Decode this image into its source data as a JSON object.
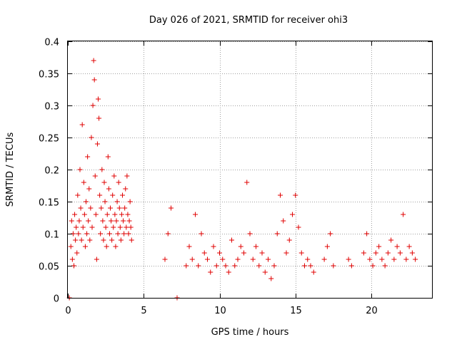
{
  "chart_data": {
    "type": "scatter",
    "title": "Day 026 of 2021, SRMTID for receiver ohi3",
    "xlabel": "GPS time / hours",
    "ylabel": "SRMTID / TECUs",
    "xlim": [
      0,
      24
    ],
    "ylim": [
      0,
      0.4
    ],
    "xticks": [
      0,
      5,
      10,
      15,
      20
    ],
    "xtick_labels": [
      "0",
      "5",
      "10",
      "15",
      "20"
    ],
    "yticks": [
      0,
      0.05,
      0.1,
      0.15,
      0.2,
      0.25,
      0.3,
      0.35,
      0.4
    ],
    "ytick_labels": [
      "0",
      "0.05",
      "0.1",
      "0.15",
      "0.2",
      "0.25",
      "0.3",
      "0.35",
      "0.4"
    ],
    "grid": true,
    "marker": "plus",
    "series": [
      {
        "name": "SRMTID",
        "color": "#e00000",
        "x": [
          0.1,
          0.2,
          0.25,
          0.3,
          0.35,
          0.4,
          0.45,
          0.5,
          0.55,
          0.6,
          0.65,
          0.7,
          0.75,
          0.8,
          0.85,
          0.9,
          0.95,
          1.0,
          1.05,
          1.1,
          1.15,
          1.2,
          1.25,
          1.3,
          1.35,
          1.4,
          1.45,
          1.5,
          1.55,
          1.6,
          1.65,
          1.7,
          1.75,
          1.8,
          1.85,
          1.9,
          1.95,
          2.0,
          2.05,
          2.1,
          2.15,
          2.2,
          2.25,
          2.3,
          2.35,
          2.4,
          2.45,
          2.5,
          2.55,
          2.6,
          2.65,
          2.7,
          2.75,
          2.8,
          2.85,
          2.9,
          2.95,
          3.0,
          3.05,
          3.1,
          3.15,
          3.2,
          3.25,
          3.3,
          3.35,
          3.4,
          3.45,
          3.5,
          3.55,
          3.6,
          3.65,
          3.7,
          3.75,
          3.8,
          3.85,
          3.9,
          3.95,
          4.0,
          4.05,
          4.1,
          4.15,
          4.2,
          6.4,
          6.6,
          6.8,
          7.2,
          7.8,
          8.0,
          8.2,
          8.4,
          8.6,
          8.8,
          9.0,
          9.2,
          9.4,
          9.6,
          9.8,
          10.0,
          10.2,
          10.4,
          10.6,
          10.8,
          11.0,
          11.2,
          11.4,
          11.6,
          11.8,
          12.0,
          12.2,
          12.4,
          12.6,
          12.8,
          13.0,
          13.2,
          13.4,
          13.6,
          13.8,
          14.0,
          14.2,
          14.4,
          14.6,
          14.8,
          15.0,
          15.2,
          15.4,
          15.6,
          15.8,
          16.0,
          16.2,
          16.9,
          17.1,
          17.3,
          17.5,
          18.5,
          18.7,
          19.5,
          19.7,
          19.9,
          20.1,
          20.3,
          20.5,
          20.7,
          20.9,
          21.1,
          21.3,
          21.5,
          21.7,
          21.9,
          22.1,
          22.3,
          22.5,
          22.7,
          22.9
        ],
        "y": [
          0.0,
          0.08,
          0.12,
          0.06,
          0.1,
          0.05,
          0.13,
          0.09,
          0.11,
          0.07,
          0.16,
          0.1,
          0.12,
          0.2,
          0.14,
          0.09,
          0.27,
          0.11,
          0.18,
          0.13,
          0.08,
          0.15,
          0.1,
          0.22,
          0.12,
          0.17,
          0.09,
          0.14,
          0.25,
          0.11,
          0.3,
          0.37,
          0.34,
          0.19,
          0.13,
          0.06,
          0.24,
          0.31,
          0.28,
          0.16,
          0.1,
          0.14,
          0.2,
          0.12,
          0.09,
          0.18,
          0.15,
          0.11,
          0.08,
          0.13,
          0.22,
          0.17,
          0.1,
          0.14,
          0.12,
          0.09,
          0.16,
          0.11,
          0.19,
          0.13,
          0.08,
          0.12,
          0.15,
          0.1,
          0.18,
          0.14,
          0.11,
          0.09,
          0.13,
          0.16,
          0.12,
          0.1,
          0.14,
          0.17,
          0.11,
          0.19,
          0.13,
          0.1,
          0.12,
          0.15,
          0.11,
          0.09,
          0.06,
          0.1,
          0.14,
          0.0,
          0.05,
          0.08,
          0.06,
          0.13,
          0.05,
          0.1,
          0.07,
          0.06,
          0.04,
          0.08,
          0.05,
          0.07,
          0.06,
          0.05,
          0.04,
          0.09,
          0.05,
          0.06,
          0.08,
          0.07,
          0.18,
          0.1,
          0.06,
          0.08,
          0.05,
          0.07,
          0.04,
          0.06,
          0.03,
          0.05,
          0.1,
          0.16,
          0.12,
          0.07,
          0.09,
          0.13,
          0.16,
          0.11,
          0.07,
          0.05,
          0.06,
          0.05,
          0.04,
          0.06,
          0.08,
          0.1,
          0.05,
          0.06,
          0.05,
          0.07,
          0.1,
          0.06,
          0.05,
          0.07,
          0.08,
          0.06,
          0.05,
          0.07,
          0.09,
          0.06,
          0.08,
          0.07,
          0.13,
          0.06,
          0.08,
          0.07,
          0.06
        ]
      }
    ]
  }
}
